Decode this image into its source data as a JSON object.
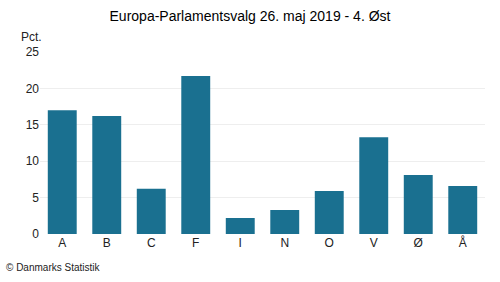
{
  "chart_data": {
    "type": "bar",
    "title": "Europa-Parlamentsvalg 26. maj 2019 - 4. Øst",
    "categories": [
      "A",
      "B",
      "C",
      "F",
      "I",
      "N",
      "O",
      "V",
      "Ø",
      "Å"
    ],
    "values": [
      17.0,
      16.2,
      6.2,
      21.7,
      2.2,
      3.3,
      5.9,
      13.3,
      8.1,
      6.6
    ],
    "color": "#1a7090",
    "ylabel": "Pct.",
    "ylim": [
      0,
      25
    ],
    "yticks": [
      0,
      5,
      10,
      15,
      20,
      25
    ],
    "grid": true,
    "annotations": [
      "© Danmarks Statistik"
    ]
  }
}
